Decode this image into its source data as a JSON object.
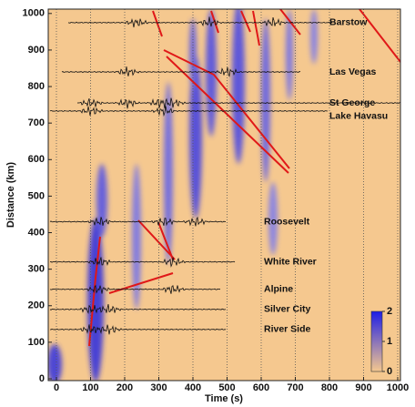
{
  "chart_data": {
    "type": "heatmap",
    "xlabel": "Time (s)",
    "ylabel": "Distance (km)",
    "xlim": [
      -24,
      1008
    ],
    "ylim": [
      -5,
      1012
    ],
    "xticks": [
      0,
      100,
      200,
      300,
      400,
      500,
      600,
      700,
      800,
      900,
      1000
    ],
    "yticks": [
      0,
      100,
      200,
      300,
      400,
      500,
      600,
      700,
      800,
      900,
      1000
    ],
    "grid": true,
    "stations": [
      {
        "name": "Barstow",
        "distance": 975
      },
      {
        "name": "Las Vegas",
        "distance": 840
      },
      {
        "name": "St George",
        "distance": 755
      },
      {
        "name": "Lake Havasu",
        "distance": 733
      },
      {
        "name": "Roosevelt",
        "distance": 430
      },
      {
        "name": "White River",
        "distance": 320
      },
      {
        "name": "Alpine",
        "distance": 245
      },
      {
        "name": "Silver City",
        "distance": 190
      },
      {
        "name": "River Side",
        "distance": 135
      }
    ],
    "colorbar": {
      "range": [
        0,
        2
      ],
      "ticks": [
        0,
        1,
        2
      ],
      "colors": [
        "#f5c88f",
        "#1e1ee6"
      ]
    }
  }
}
